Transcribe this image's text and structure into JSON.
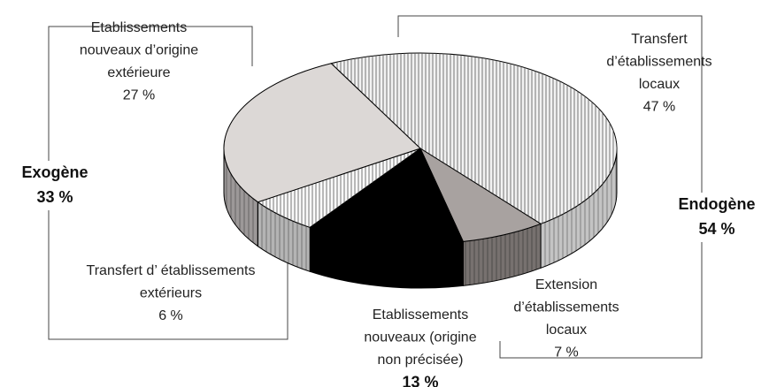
{
  "chart_data": {
    "type": "pie3d",
    "categories": [
      [
        "Transfert",
        "d’établissements",
        "locaux"
      ],
      [
        "Extension",
        "d’établissements",
        "locaux"
      ],
      [
        "Etablissements",
        "nouveaux (origine",
        "non précisée)"
      ],
      [
        "Transfert d’ établissements",
        "extérieurs"
      ],
      [
        "Etablissements",
        "nouveaux d’origine",
        "extérieure"
      ]
    ],
    "values": [
      47,
      7,
      13,
      6,
      27
    ],
    "value_labels": [
      "47 %",
      "7 %",
      "13 %",
      "6 %",
      "27 %"
    ],
    "colors": [
      "#f2f2f2",
      "#a8a2a0",
      "#000000",
      "#fafafa",
      "#dcd8d6"
    ],
    "side_colors": [
      "#c4c4c4",
      "#77716f",
      "#000000",
      "#b4b4b4",
      "#9c9898"
    ],
    "hatch": [
      true,
      false,
      false,
      true,
      false
    ],
    "groups": [
      {
        "name": "Exogène",
        "value": 33,
        "value_label": "33 %"
      },
      {
        "name": "Endogène",
        "value": 54,
        "value_label": "54 %"
      }
    ]
  }
}
